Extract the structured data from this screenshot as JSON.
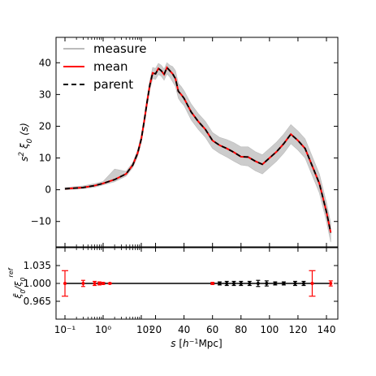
{
  "chart_data": [
    {
      "panel": "main",
      "type": "line",
      "ylabel": "s^2 ξ0 (s)",
      "ylim": [
        -18,
        48
      ],
      "y_ticks": [
        -10,
        0,
        10,
        20,
        30,
        40
      ],
      "legend": {
        "placement": "top-left",
        "entries": [
          {
            "label": "measure",
            "color": "#bbbbbb",
            "style": "solid"
          },
          {
            "label": "mean",
            "color": "#ff0000",
            "style": "solid"
          },
          {
            "label": "parent",
            "color": "#000000",
            "style": "dashed"
          }
        ]
      },
      "x": [
        0.1,
        0.3,
        0.6,
        1,
        2,
        4,
        6,
        8,
        10,
        12,
        14,
        16,
        18,
        20,
        22,
        24,
        26,
        28,
        30,
        32,
        34,
        36,
        38,
        40,
        45,
        50,
        55,
        60,
        65,
        70,
        75,
        80,
        85,
        90,
        95,
        100,
        105,
        110,
        115,
        120,
        125,
        130,
        135,
        140,
        143
      ],
      "series": [
        {
          "name": "parent",
          "color": "#000000",
          "style": "dashed",
          "values": [
            0.3,
            0.7,
            1.3,
            2.0,
            3.2,
            5.0,
            7.8,
            11.5,
            16.0,
            21.5,
            27.5,
            33.0,
            36.8,
            36.5,
            38.2,
            37.5,
            36.3,
            38.5,
            37.5,
            36.5,
            35.0,
            31.0,
            30.0,
            28.8,
            24.5,
            21.5,
            19.0,
            15.5,
            14.0,
            13.0,
            11.8,
            10.4,
            10.3,
            9.0,
            8.0,
            10.0,
            12.0,
            14.5,
            17.5,
            15.5,
            13.0,
            7.5,
            2.0,
            -7.0,
            -13.5
          ]
        },
        {
          "name": "mean",
          "color": "#ff0000",
          "style": "solid",
          "values": [
            0.3,
            0.7,
            1.3,
            2.0,
            3.2,
            5.0,
            7.8,
            11.5,
            16.0,
            21.5,
            27.5,
            33.0,
            36.8,
            36.5,
            38.2,
            37.5,
            36.3,
            38.5,
            37.5,
            36.5,
            35.0,
            31.0,
            30.0,
            28.8,
            24.5,
            21.5,
            19.0,
            15.5,
            14.0,
            13.0,
            11.8,
            10.4,
            10.3,
            9.0,
            8.0,
            10.0,
            12.0,
            14.5,
            17.5,
            15.5,
            13.0,
            7.5,
            2.0,
            -7.0,
            -13.5
          ]
        }
      ],
      "measure_band": {
        "color": "#bbbbbb",
        "lower": [
          0.0,
          0.3,
          0.8,
          1.5,
          2.5,
          4.3,
          7.0,
          10.5,
          14.8,
          20.2,
          26.0,
          31.5,
          35.0,
          34.8,
          36.3,
          35.8,
          34.5,
          36.5,
          35.5,
          34.0,
          32.5,
          28.8,
          27.5,
          26.5,
          22.0,
          19.0,
          16.5,
          13.0,
          11.5,
          10.3,
          9.0,
          7.8,
          7.5,
          6.0,
          5.0,
          7.0,
          9.0,
          11.5,
          14.5,
          12.5,
          10.0,
          4.5,
          -1.0,
          -10.0,
          -16.5
        ],
        "upper": [
          0.7,
          1.2,
          1.9,
          2.6,
          6.5,
          5.8,
          8.6,
          12.5,
          17.2,
          22.8,
          29.0,
          34.5,
          38.5,
          38.2,
          39.8,
          39.2,
          38.0,
          40.0,
          39.2,
          38.8,
          37.5,
          33.5,
          32.5,
          31.2,
          27.0,
          24.0,
          21.5,
          18.0,
          16.5,
          15.8,
          14.8,
          13.5,
          13.5,
          12.0,
          11.0,
          13.0,
          15.0,
          17.5,
          20.5,
          18.5,
          16.0,
          10.5,
          5.0,
          -4.0,
          -10.5
        ]
      }
    },
    {
      "panel": "ratio",
      "type": "line",
      "ylabel": "ξ̄0 / ξ0^ref",
      "ylim": [
        0.93,
        1.07
      ],
      "y_tick_labels": [
        "1.035",
        "1.000",
        "0.965"
      ],
      "y_ticks": [
        1.035,
        1.0,
        0.965
      ],
      "xlabel": "s [h⁻¹ Mpc]",
      "x_tick_labels": [
        "10⁻¹",
        "10⁰",
        "10¹",
        "20",
        "40",
        "60",
        "80",
        "100",
        "120",
        "140"
      ],
      "x": [
        0.1,
        0.3,
        0.6,
        1,
        2,
        4,
        6,
        8,
        10,
        12,
        14,
        16,
        18,
        20,
        22,
        24,
        26,
        28,
        30,
        32,
        34,
        36,
        38,
        40,
        45,
        50,
        55,
        60,
        65,
        70,
        75,
        80,
        85,
        90,
        95,
        100,
        105,
        110,
        115,
        120,
        125,
        130,
        135,
        140,
        143
      ],
      "series": [
        {
          "name": "parent",
          "color": "#000000",
          "values": [
            1.0,
            1.0,
            1.0,
            1.0,
            1.0,
            1.0,
            1.0,
            1.0,
            1.0,
            1.0,
            1.0,
            1.0,
            1.0,
            1.0,
            1.0,
            1.0,
            1.0,
            1.0,
            1.0,
            1.0,
            1.0,
            1.0,
            1.0,
            1.0,
            1.0,
            1.0,
            1.0,
            1.0,
            1.0,
            1.0,
            1.0,
            1.0,
            1.0,
            1.0,
            1.0,
            1.0,
            1.0,
            1.0,
            1.0,
            1.0,
            1.0,
            1.0,
            1.0,
            1.0,
            1.0
          ]
        }
      ],
      "red_errorbars": [
        {
          "x": 0.1,
          "y": 1.0,
          "err": 0.025
        },
        {
          "x": 0.3,
          "y": 1.0,
          "err": 0.006
        },
        {
          "x": 0.6,
          "y": 1.0,
          "err": 0.004
        },
        {
          "x": 0.8,
          "y": 1.0,
          "err": 0.003
        },
        {
          "x": 1.0,
          "y": 1.0,
          "err": 0.002
        },
        {
          "x": 1.5,
          "y": 1.0,
          "err": 0.001
        },
        {
          "x": 60,
          "y": 1.0,
          "err": 0.002
        },
        {
          "x": 130,
          "y": 1.0,
          "err": 0.025
        },
        {
          "x": 143,
          "y": 1.0,
          "err": 0.005
        }
      ],
      "black_errorbars": [
        {
          "x": 65,
          "y": 1.0,
          "err": 0.003
        },
        {
          "x": 70,
          "y": 1.0,
          "err": 0.004
        },
        {
          "x": 75,
          "y": 1.0,
          "err": 0.004
        },
        {
          "x": 80,
          "y": 1.0,
          "err": 0.004
        },
        {
          "x": 86,
          "y": 1.0,
          "err": 0.004
        },
        {
          "x": 92,
          "y": 1.0,
          "err": 0.006
        },
        {
          "x": 98,
          "y": 1.0,
          "err": 0.005
        },
        {
          "x": 104,
          "y": 1.0,
          "err": 0.003
        },
        {
          "x": 110,
          "y": 1.0,
          "err": 0.003
        },
        {
          "x": 118,
          "y": 1.0,
          "err": 0.004
        },
        {
          "x": 124,
          "y": 1.0,
          "err": 0.004
        }
      ]
    }
  ]
}
